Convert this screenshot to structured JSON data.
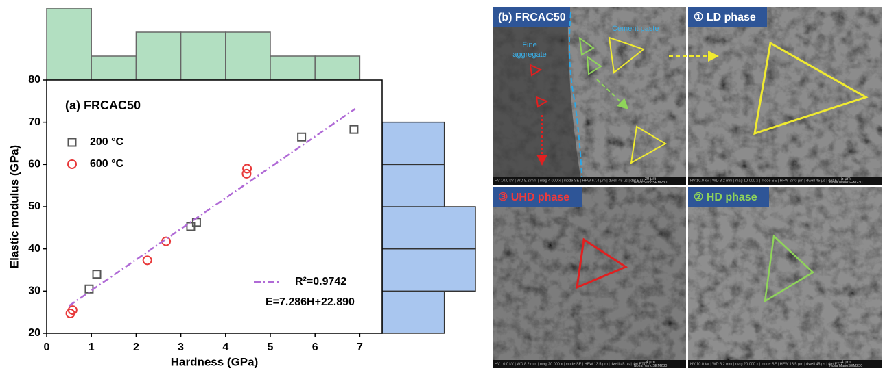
{
  "chart_data": [
    {
      "type": "scatter",
      "title": "(a) FRCAC50",
      "x_label": "Hardness (GPa)",
      "y_label": "Elastic modulus (GPa)",
      "xlim": [
        0,
        7.5
      ],
      "ylim": [
        20,
        80
      ],
      "xticks": [
        0,
        1,
        2,
        3,
        4,
        5,
        6,
        7
      ],
      "yticks": [
        20,
        30,
        40,
        50,
        60,
        70,
        80
      ],
      "series": [
        {
          "name": "200 °C",
          "marker": "square",
          "color": "#555555",
          "x": [
            0.95,
            1.12,
            3.22,
            3.35,
            5.7,
            6.87
          ],
          "values": [
            30.5,
            34,
            45.3,
            46.3,
            66.5,
            68.3
          ]
        },
        {
          "name": "600 °C",
          "marker": "circle",
          "color": "#e8393a",
          "x": [
            0.53,
            0.58,
            2.25,
            2.67,
            4.47,
            4.48
          ],
          "values": [
            24.7,
            25.5,
            37.3,
            41.8,
            57.8,
            59.0
          ]
        },
        {
          "name": "R²=0.9742",
          "marker": "dashdot",
          "color": "#b06ad6",
          "x": [
            0.5,
            6.9
          ],
          "values": [
            26.5,
            73.2
          ]
        }
      ],
      "annotations": [
        "E=7.286H+22.890"
      ]
    },
    {
      "type": "histogram",
      "orientation": "vertical",
      "bins": [
        0,
        1,
        2,
        3,
        4,
        5,
        6,
        7
      ],
      "values": [
        3,
        1,
        2,
        2,
        2,
        1,
        1
      ],
      "color": "#b2dfc1",
      "xlim": [
        0,
        7.5
      ],
      "ylim": [
        0,
        3
      ]
    },
    {
      "type": "histogram",
      "orientation": "horizontal",
      "bins": [
        20,
        30,
        40,
        50,
        60,
        70
      ],
      "values": [
        2,
        3,
        3,
        2,
        2
      ],
      "color": "#a9c6ef",
      "ylim": [
        20,
        80
      ],
      "xlim": [
        0,
        3
      ]
    }
  ],
  "figure_b": {
    "panels": [
      {
        "label": "(b) FRCAC50",
        "label_color": "#ffffff",
        "tone": "#8a8a8a",
        "info": "HV 10.0 kV | WD 8.2 mm | mag 4 000 x | mode SE | HFW 67.4 µm | dwell 45 µs | det ETD",
        "scale": "20 µm",
        "device": "Nova NanoSEM230"
      },
      {
        "label": "① LD phase",
        "label_color": "#ffffff",
        "tone": "#8c8c8c",
        "info": "HV 10.0 kV | WD 8.2 mm | mag 10 000 x | mode SE | HFW 27.0 µm | dwell 45 µs | det ETD",
        "scale": "5 µm",
        "device": "Nova NanoSEM230"
      },
      {
        "label": "③ UHD phase",
        "label_color": "#f03a3a",
        "tone": "#7c7c7c",
        "info": "HV 10.0 kV | WD 8.2 mm | mag 20 000 x | mode SE | HFW 13.5 µm | dwell 45 µs | det ETD",
        "scale": "4 µm",
        "device": "Nova NanoSEM230"
      },
      {
        "label": "② HD phase",
        "label_color": "#8fd45a",
        "tone": "#8e8e8e",
        "info": "HV 10.0 kV | WD 8.2 mm | mag 20 000 x | mode SE | HFW 13.5 µm | dwell 45 µs | det ETD",
        "scale": "4 µm",
        "device": "Nova NanoSEM230"
      }
    ],
    "annotations": {
      "cement": "Cement paste",
      "aggregate": [
        "Fine",
        "aggregate"
      ]
    }
  }
}
